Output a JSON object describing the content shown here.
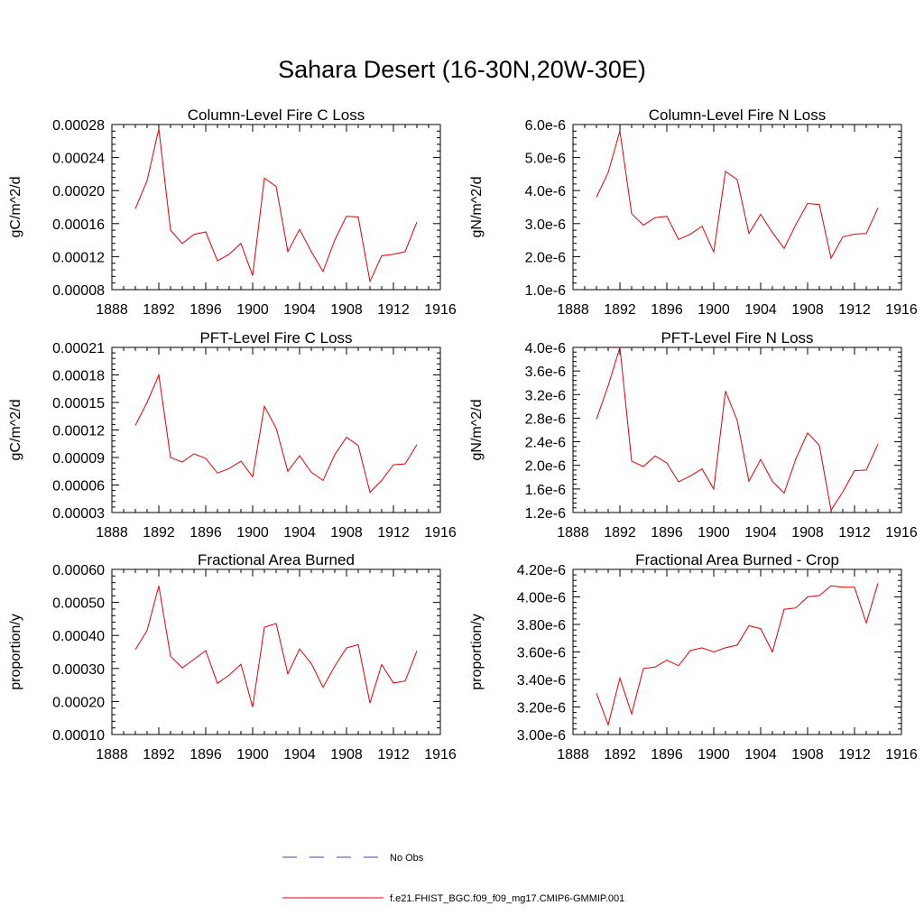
{
  "title": "Sahara Desert (16-30N,20W-30E)",
  "legend": {
    "obs_label": "No Obs",
    "obs_color": "#4040c0",
    "model_label": "f.e21.FHIST_BGC.f09_f09_mg17.CMIP6-GMMIP.001",
    "model_color": "#e00000"
  },
  "chart_data": [
    {
      "type": "line",
      "title": "Column-Level Fire C Loss",
      "ylabel": "gC/m^2/d",
      "xlim": [
        1888,
        1916
      ],
      "ylim": [
        8e-05,
        0.00028
      ],
      "xticks": [
        1888,
        1892,
        1896,
        1900,
        1904,
        1908,
        1912,
        1916
      ],
      "yticks": [
        8e-05,
        0.00012,
        0.00016,
        0.0002,
        0.00024,
        0.00028
      ],
      "ytick_labels": [
        "0.00008",
        "0.00012",
        "0.00016",
        "0.00020",
        "0.00024",
        "0.00028"
      ],
      "x": [
        1890,
        1891,
        1892,
        1893,
        1894,
        1895,
        1896,
        1897,
        1898,
        1899,
        1900,
        1901,
        1902,
        1903,
        1904,
        1905,
        1906,
        1907,
        1908,
        1909,
        1910,
        1911,
        1912,
        1913,
        1914
      ],
      "series": [
        {
          "name": "f.e21.FHIST_BGC.f09_f09_mg17.CMIP6-GMMIP.001",
          "values": [
            0.000178,
            0.000212,
            0.000275,
            0.000152,
            0.000136,
            0.000147,
            0.00015,
            0.000115,
            0.000123,
            0.000136,
            9.7e-05,
            0.000215,
            0.000205,
            0.000126,
            0.000153,
            0.000126,
            0.000102,
            0.00014,
            0.000169,
            0.000168,
            9e-05,
            0.000121,
            0.000123,
            0.000126,
            0.000162
          ]
        }
      ]
    },
    {
      "type": "line",
      "title": "Column-Level Fire N Loss",
      "ylabel": "gN/m^2/d",
      "xlim": [
        1888,
        1916
      ],
      "ylim": [
        1e-06,
        6e-06
      ],
      "xticks": [
        1888,
        1892,
        1896,
        1900,
        1904,
        1908,
        1912,
        1916
      ],
      "yticks": [
        1e-06,
        2e-06,
        3e-06,
        4e-06,
        5e-06,
        6e-06
      ],
      "ytick_labels": [
        "1.0e-6",
        "2.0e-6",
        "3.0e-6",
        "4.0e-6",
        "5.0e-6",
        "6.0e-6"
      ],
      "x": [
        1890,
        1891,
        1892,
        1893,
        1894,
        1895,
        1896,
        1897,
        1898,
        1899,
        1900,
        1901,
        1902,
        1903,
        1904,
        1905,
        1906,
        1907,
        1908,
        1909,
        1910,
        1911,
        1912,
        1913,
        1914
      ],
      "series": [
        {
          "name": "f.e21.FHIST_BGC.f09_f09_mg17.CMIP6-GMMIP.001",
          "values": [
            3.8e-06,
            4.55e-06,
            5.8e-06,
            3.3e-06,
            2.95e-06,
            3.18e-06,
            3.22e-06,
            2.52e-06,
            2.68e-06,
            2.92e-06,
            2.14e-06,
            4.58e-06,
            4.33e-06,
            2.7e-06,
            3.28e-06,
            2.73e-06,
            2.25e-06,
            2.97e-06,
            3.61e-06,
            3.58e-06,
            1.95e-06,
            2.6e-06,
            2.68e-06,
            2.7e-06,
            3.47e-06
          ]
        }
      ]
    },
    {
      "type": "line",
      "title": "PFT-Level Fire C Loss",
      "ylabel": "gC/m^2/d",
      "xlim": [
        1888,
        1916
      ],
      "ylim": [
        3e-05,
        0.00021
      ],
      "xticks": [
        1888,
        1892,
        1896,
        1900,
        1904,
        1908,
        1912,
        1916
      ],
      "yticks": [
        3e-05,
        6e-05,
        9e-05,
        0.00012,
        0.00015,
        0.00018,
        0.00021
      ],
      "ytick_labels": [
        "0.00003",
        "0.00006",
        "0.00009",
        "0.00012",
        "0.00015",
        "0.00018",
        "0.00021"
      ],
      "x": [
        1890,
        1891,
        1892,
        1893,
        1894,
        1895,
        1896,
        1897,
        1898,
        1899,
        1900,
        1901,
        1902,
        1903,
        1904,
        1905,
        1906,
        1907,
        1908,
        1909,
        1910,
        1911,
        1912,
        1913,
        1914
      ],
      "series": [
        {
          "name": "f.e21.FHIST_BGC.f09_f09_mg17.CMIP6-GMMIP.001",
          "values": [
            0.000125,
            0.00015,
            0.00018,
            9e-05,
            8.5e-05,
            9.4e-05,
            8.9e-05,
            7.3e-05,
            7.8e-05,
            8.6e-05,
            6.9e-05,
            0.000146,
            0.000122,
            7.5e-05,
            9.2e-05,
            7.4e-05,
            6.5e-05,
            9.3e-05,
            0.000112,
            0.000103,
            5.2e-05,
            6.5e-05,
            8.2e-05,
            8.3e-05,
            0.000104
          ]
        }
      ]
    },
    {
      "type": "line",
      "title": "PFT-Level Fire N Loss",
      "ylabel": "gN/m^2/d",
      "xlim": [
        1888,
        1916
      ],
      "ylim": [
        1.2e-06,
        4e-06
      ],
      "xticks": [
        1888,
        1892,
        1896,
        1900,
        1904,
        1908,
        1912,
        1916
      ],
      "yticks": [
        1.2e-06,
        1.6e-06,
        2e-06,
        2.4e-06,
        2.8e-06,
        3.2e-06,
        3.6e-06,
        4e-06
      ],
      "ytick_labels": [
        "1.2e-6",
        "1.6e-6",
        "2.0e-6",
        "2.4e-6",
        "2.8e-6",
        "3.2e-6",
        "3.6e-6",
        "4.0e-6"
      ],
      "x": [
        1890,
        1891,
        1892,
        1893,
        1894,
        1895,
        1896,
        1897,
        1898,
        1899,
        1900,
        1901,
        1902,
        1903,
        1904,
        1905,
        1906,
        1907,
        1908,
        1909,
        1910,
        1911,
        1912,
        1913,
        1914
      ],
      "series": [
        {
          "name": "f.e21.FHIST_BGC.f09_f09_mg17.CMIP6-GMMIP.001",
          "values": [
            2.78e-06,
            3.35e-06,
            4e-06,
            2.07e-06,
            1.98e-06,
            2.16e-06,
            2.04e-06,
            1.72e-06,
            1.82e-06,
            1.94e-06,
            1.6e-06,
            3.26e-06,
            2.76e-06,
            1.73e-06,
            2.1e-06,
            1.73e-06,
            1.53e-06,
            2.11e-06,
            2.55e-06,
            2.34e-06,
            1.24e-06,
            1.55e-06,
            1.91e-06,
            1.92e-06,
            2.36e-06
          ]
        }
      ]
    },
    {
      "type": "line",
      "title": "Fractional Area Burned",
      "ylabel": "proportion/y",
      "xlim": [
        1888,
        1916
      ],
      "ylim": [
        0.0001,
        0.0006
      ],
      "xticks": [
        1888,
        1892,
        1896,
        1900,
        1904,
        1908,
        1912,
        1916
      ],
      "yticks": [
        0.0001,
        0.0002,
        0.0003,
        0.0004,
        0.0005,
        0.0006
      ],
      "ytick_labels": [
        "0.00010",
        "0.00020",
        "0.00030",
        "0.00040",
        "0.00050",
        "0.00060"
      ],
      "x": [
        1890,
        1891,
        1892,
        1893,
        1894,
        1895,
        1896,
        1897,
        1898,
        1899,
        1900,
        1901,
        1902,
        1903,
        1904,
        1905,
        1906,
        1907,
        1908,
        1909,
        1910,
        1911,
        1912,
        1913,
        1914
      ],
      "series": [
        {
          "name": "f.e21.FHIST_BGC.f09_f09_mg17.CMIP6-GMMIP.001",
          "values": [
            0.000357,
            0.000415,
            0.00055,
            0.000337,
            0.000302,
            0.000328,
            0.000354,
            0.000255,
            0.00028,
            0.000313,
            0.000183,
            0.000425,
            0.000436,
            0.000284,
            0.000359,
            0.000315,
            0.000243,
            0.000307,
            0.000362,
            0.000372,
            0.000195,
            0.000312,
            0.000256,
            0.000262,
            0.000353
          ]
        }
      ]
    },
    {
      "type": "line",
      "title": "Fractional Area Burned - Crop",
      "ylabel": "proportion/y",
      "xlim": [
        1888,
        1916
      ],
      "ylim": [
        3e-06,
        4.2e-06
      ],
      "xticks": [
        1888,
        1892,
        1896,
        1900,
        1904,
        1908,
        1912,
        1916
      ],
      "yticks": [
        3e-06,
        3.2e-06,
        3.4e-06,
        3.6e-06,
        3.8e-06,
        4e-06,
        4.2e-06
      ],
      "ytick_labels": [
        "3.00e-6",
        "3.20e-6",
        "3.40e-6",
        "3.60e-6",
        "3.80e-6",
        "4.00e-6",
        "4.20e-6"
      ],
      "x": [
        1890,
        1891,
        1892,
        1893,
        1894,
        1895,
        1896,
        1897,
        1898,
        1899,
        1900,
        1901,
        1902,
        1903,
        1904,
        1905,
        1906,
        1907,
        1908,
        1909,
        1910,
        1911,
        1912,
        1913,
        1914
      ],
      "series": [
        {
          "name": "f.e21.FHIST_BGC.f09_f09_mg17.CMIP6-GMMIP.001",
          "values": [
            3.3e-06,
            3.07e-06,
            3.41e-06,
            3.15e-06,
            3.48e-06,
            3.49e-06,
            3.54e-06,
            3.5e-06,
            3.61e-06,
            3.63e-06,
            3.6e-06,
            3.63e-06,
            3.65e-06,
            3.79e-06,
            3.77e-06,
            3.6e-06,
            3.91e-06,
            3.92e-06,
            4e-06,
            4.01e-06,
            4.08e-06,
            4.07e-06,
            4.07e-06,
            3.81e-06,
            4.1e-06
          ]
        }
      ]
    }
  ]
}
